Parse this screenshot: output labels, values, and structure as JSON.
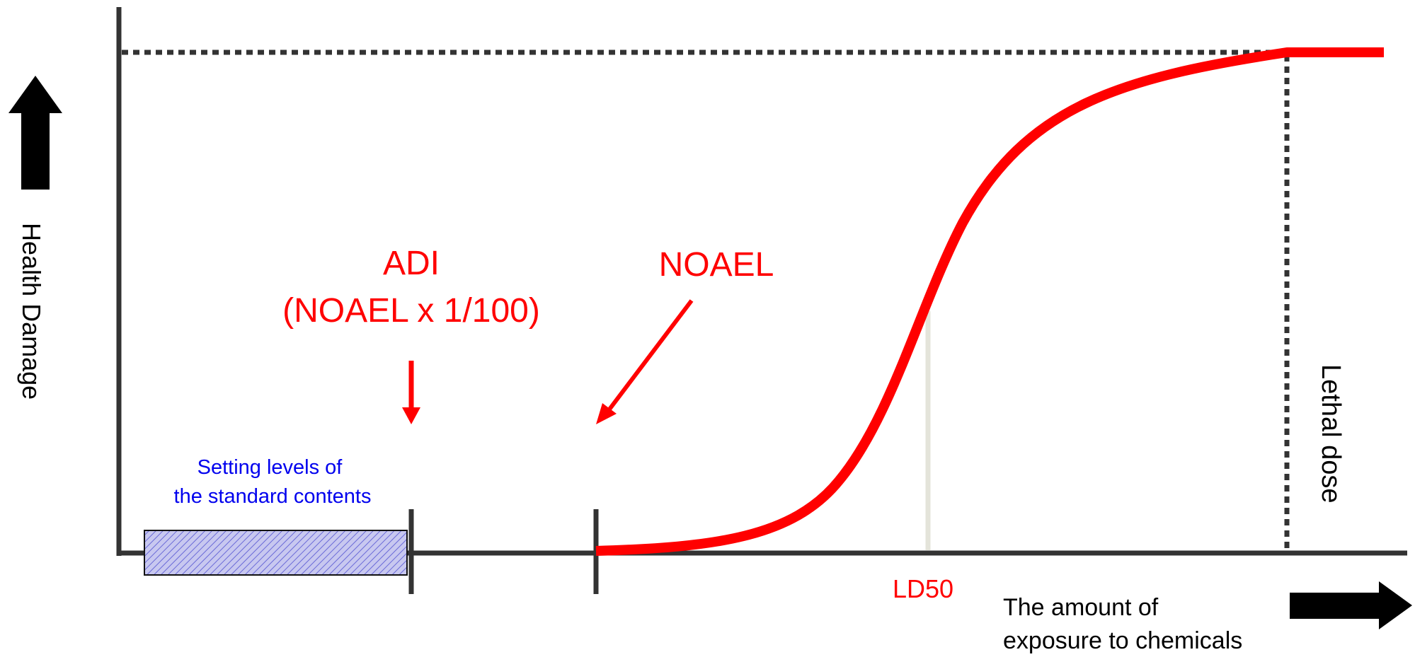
{
  "labels": {
    "y_axis": "Health Damage",
    "x_axis_line1": "The amount of",
    "x_axis_line2": "exposure to chemicals",
    "adi_line1": "ADI",
    "adi_line2": "(NOAEL x 1/100)",
    "noael": "NOAEL",
    "ld50": "LD50",
    "lethal": "Lethal dose",
    "standard_line1": "Setting levels of",
    "standard_line2": "the standard contents"
  },
  "colors": {
    "axis": "#333333",
    "curve": "#ff0000",
    "annotation": "#ff0000",
    "standard_text": "#0000ee",
    "standard_fill": "#c8c8f0",
    "standard_hatch": "#6a6ad8",
    "ld50_line": "#e4e4da",
    "arrow": "#000000"
  },
  "icons": {
    "up_arrow": "arrow-up-icon",
    "right_arrow": "arrow-right-icon"
  }
}
